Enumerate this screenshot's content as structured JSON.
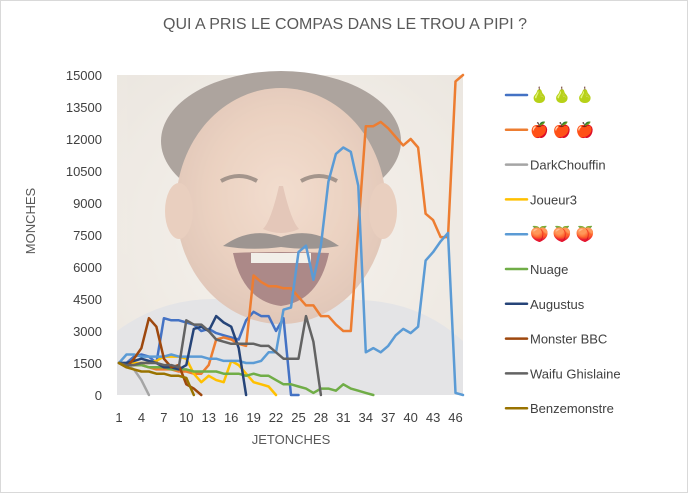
{
  "chart_data": {
    "type": "line",
    "title": "QUI A PRIS LE COMPAS DANS LE TROU A PIPI ?",
    "xlabel": "JETONCHES",
    "ylabel": "MONCHES",
    "ylim": [
      0,
      15000
    ],
    "y_ticks": [
      0,
      1500,
      3000,
      4500,
      6000,
      7500,
      9000,
      10500,
      12000,
      13500,
      15000
    ],
    "y_tick_labels": [
      "0",
      "1500",
      "3000",
      "4500",
      "6000",
      "7500",
      "9000",
      "10500",
      "12000",
      "13500",
      "15000"
    ],
    "xlim": [
      1,
      47
    ],
    "x_ticks": [
      1,
      4,
      7,
      10,
      13,
      16,
      19,
      22,
      25,
      28,
      31,
      34,
      37,
      40,
      43,
      46
    ],
    "x_tick_labels": [
      "1",
      "4",
      "7",
      "10",
      "13",
      "16",
      "19",
      "22",
      "25",
      "28",
      "31",
      "34",
      "37",
      "40",
      "43",
      "46"
    ],
    "grid": false,
    "legend_position": "right",
    "background_image": "laughing-man-photo",
    "series": [
      {
        "name": "🍐 🍐 🍐",
        "color": "#4472c4",
        "x": [
          1,
          2,
          3,
          4,
          5,
          6,
          7,
          8,
          9,
          10,
          11,
          12,
          13,
          14,
          15,
          16,
          17,
          18,
          19,
          20,
          21,
          22,
          23,
          24,
          25
        ],
        "y": [
          1500,
          1500,
          1800,
          1900,
          1800,
          1500,
          3600,
          3500,
          3500,
          3400,
          3300,
          3000,
          3100,
          2900,
          2800,
          2700,
          2600,
          3500,
          3900,
          3700,
          3700,
          3000,
          3600,
          0,
          0
        ]
      },
      {
        "name": "🍎 🍎 🍎",
        "color": "#ed7d31",
        "x": [
          1,
          2,
          3,
          4,
          5,
          6,
          7,
          8,
          9,
          10,
          11,
          12,
          13,
          14,
          15,
          16,
          17,
          18,
          19,
          20,
          21,
          22,
          23,
          24,
          25,
          26,
          27,
          28,
          29,
          30,
          31,
          32,
          33,
          34,
          35,
          36,
          37,
          38,
          39,
          40,
          41,
          42,
          43,
          44,
          45,
          46,
          47
        ],
        "y": [
          1500,
          1400,
          1400,
          1400,
          1300,
          1200,
          1200,
          1200,
          1100,
          1100,
          1000,
          1000,
          1400,
          2600,
          2700,
          2600,
          2400,
          2300,
          5600,
          5300,
          5100,
          5100,
          5000,
          5000,
          4600,
          4200,
          4200,
          3700,
          3700,
          3300,
          3000,
          3000,
          7800,
          12600,
          12600,
          12800,
          12500,
          12100,
          11700,
          12000,
          11600,
          8500,
          8200,
          7400,
          7400,
          14700,
          15000
        ]
      },
      {
        "name": "DarkChouffin",
        "color": "#a5a5a5",
        "x": [
          1,
          2,
          3,
          4,
          5
        ],
        "y": [
          1500,
          1400,
          1200,
          700,
          0
        ]
      },
      {
        "name": "Joueur3",
        "color": "#ffc000",
        "x": [
          1,
          2,
          3,
          4,
          5,
          6,
          7,
          8,
          9,
          10,
          11,
          12,
          13,
          14,
          15,
          16,
          17,
          18,
          19,
          20,
          21,
          22
        ],
        "y": [
          1500,
          1400,
          1500,
          1500,
          1500,
          1600,
          1800,
          1800,
          1800,
          1700,
          1000,
          600,
          900,
          700,
          600,
          1600,
          1400,
          1000,
          600,
          500,
          400,
          0
        ]
      },
      {
        "name": "🍑 🍑 🍑",
        "color": "#5b9bd5",
        "x": [
          1,
          2,
          3,
          4,
          5,
          6,
          7,
          8,
          9,
          10,
          11,
          12,
          13,
          14,
          15,
          16,
          17,
          18,
          19,
          20,
          21,
          22,
          23,
          24,
          25,
          26,
          27,
          28,
          29,
          30,
          31,
          32,
          33,
          34,
          35,
          36,
          37,
          38,
          39,
          40,
          41,
          42,
          43,
          44,
          45,
          46,
          47
        ],
        "y": [
          1500,
          1900,
          1900,
          1800,
          1800,
          1800,
          1800,
          1900,
          1800,
          1800,
          1800,
          1800,
          1700,
          1700,
          1600,
          1600,
          1600,
          1500,
          1500,
          1600,
          2000,
          2000,
          4000,
          4100,
          6700,
          7000,
          5400,
          7000,
          10000,
          11300,
          11600,
          11400,
          9800,
          2000,
          2200,
          2000,
          2300,
          2800,
          3100,
          2900,
          3200,
          6300,
          6700,
          7200,
          7600,
          100,
          0
        ]
      },
      {
        "name": "Nuage",
        "color": "#70ad47",
        "x": [
          1,
          2,
          3,
          4,
          5,
          6,
          7,
          8,
          9,
          10,
          11,
          12,
          13,
          14,
          15,
          16,
          17,
          18,
          19,
          20,
          21,
          22,
          23,
          24,
          25,
          26,
          27,
          28,
          29,
          30,
          31,
          32,
          33,
          34,
          35
        ],
        "y": [
          1500,
          1400,
          1400,
          1400,
          1300,
          1300,
          1300,
          1200,
          1200,
          1200,
          1100,
          1100,
          1100,
          1100,
          1000,
          1000,
          1000,
          900,
          1000,
          900,
          900,
          700,
          500,
          500,
          400,
          300,
          100,
          300,
          300,
          200,
          500,
          300,
          200,
          100,
          0
        ]
      },
      {
        "name": "Augustus",
        "color": "#264478",
        "x": [
          1,
          2,
          3,
          4,
          5,
          6,
          7,
          8,
          9,
          10,
          11,
          12,
          13,
          14,
          15,
          16,
          17,
          18
        ],
        "y": [
          1500,
          1500,
          1600,
          1700,
          1600,
          1500,
          1300,
          1300,
          1200,
          1400,
          3100,
          3200,
          3000,
          3700,
          3400,
          3200,
          2200,
          0
        ]
      },
      {
        "name": "Monster BBC",
        "color": "#9e480e",
        "x": [
          1,
          2,
          3,
          4,
          5,
          6,
          7,
          8,
          9,
          10,
          11,
          12
        ],
        "y": [
          1500,
          1300,
          1700,
          2200,
          3600,
          3200,
          1700,
          1300,
          1400,
          500,
          300,
          0
        ]
      },
      {
        "name": "Waifu Ghislaine",
        "color": "#636363",
        "x": [
          1,
          2,
          3,
          4,
          5,
          6,
          7,
          8,
          9,
          10,
          11,
          12,
          13,
          14,
          15,
          16,
          17,
          18,
          19,
          20,
          21,
          22,
          23,
          24,
          25,
          26,
          27,
          28
        ],
        "y": [
          1500,
          1400,
          1400,
          1500,
          1500,
          1500,
          1400,
          1400,
          1300,
          3500,
          3300,
          3300,
          3000,
          2600,
          2500,
          2400,
          2400,
          2400,
          2400,
          2300,
          2300,
          2000,
          1700,
          1700,
          1700,
          3700,
          2500,
          0
        ]
      },
      {
        "name": "Benzemonstre",
        "color": "#997300",
        "x": [
          1,
          2,
          3,
          4,
          5,
          6,
          7,
          8,
          9,
          10,
          11
        ],
        "y": [
          1500,
          1300,
          1200,
          1100,
          1100,
          1000,
          1000,
          900,
          900,
          800,
          0
        ]
      }
    ]
  }
}
